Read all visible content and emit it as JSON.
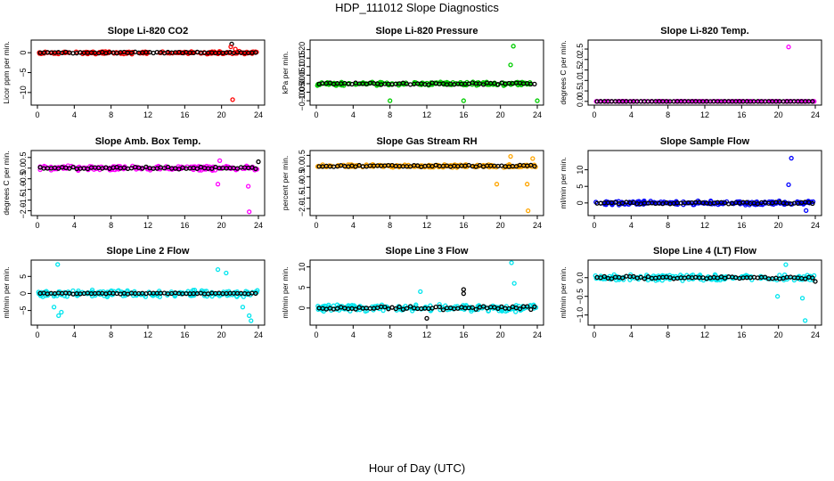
{
  "title": "HDP_111012  Slope Diagnostics",
  "xlabel": "Hour of Day (UTC)",
  "chart_data": [
    {
      "type": "scatter",
      "title": "Slope Li-820 CO2",
      "ylabel": "Licor ppm per min.",
      "color": "#ff0000",
      "xlim": [
        0,
        24
      ],
      "xticks": [
        0,
        4,
        8,
        12,
        16,
        20,
        24
      ],
      "ylim": [
        -12.5,
        2.5
      ],
      "yticks": [
        0,
        -5,
        -10
      ],
      "ytick_labels": [
        "0",
        "−5",
        "−10"
      ],
      "outliers": [
        {
          "x": 21.1,
          "y": 2.2,
          "c": "black"
        },
        {
          "x": 21.5,
          "y": 0.9
        },
        {
          "x": 21.2,
          "y": -11.8
        },
        {
          "x": 21.0,
          "y": 1.5
        }
      ],
      "base": 0,
      "spread": 0.4,
      "black_spread": 0.2
    },
    {
      "type": "scatter",
      "title": "Slope Li-820 Pressure",
      "ylabel": "kPa per min.",
      "color": "#00cc00",
      "xlim": [
        0,
        24
      ],
      "xticks": [
        0,
        4,
        8,
        12,
        16,
        20,
        24
      ],
      "ylim": [
        -0.11,
        0.24
      ],
      "yticks": [
        -0.1,
        -0.05,
        0,
        0.05,
        0.1,
        0.15,
        0.2
      ],
      "ytick_labels": [
        "−0.10",
        "−0.05",
        "0.00",
        "0.05",
        "0.10",
        "0.15",
        "0.20"
      ],
      "outliers": [
        {
          "x": 8,
          "y": -0.1
        },
        {
          "x": 16,
          "y": -0.1
        },
        {
          "x": 21.1,
          "y": 0.11
        },
        {
          "x": 21.4,
          "y": 0.22
        },
        {
          "x": 24,
          "y": -0.1
        }
      ],
      "base": 0,
      "spread": 0.012,
      "black_spread": 0.006
    },
    {
      "type": "scatter",
      "title": "Slope Li-820 Temp.",
      "ylabel": "degrees C per min.",
      "color": "#ff00ff",
      "xlim": [
        0,
        24
      ],
      "xticks": [
        0,
        4,
        8,
        12,
        16,
        20,
        24
      ],
      "ylim": [
        -0.05,
        2.8
      ],
      "yticks": [
        0,
        0.5,
        1,
        1.5,
        2,
        2.5
      ],
      "ytick_labels": [
        "0.0",
        "0.5",
        "1.0",
        "1.5",
        "2.0",
        "2.5"
      ],
      "outliers": [
        {
          "x": 21.1,
          "y": 2.6
        }
      ],
      "base": 0,
      "spread": 0.005,
      "black_spread": 0.002
    },
    {
      "type": "scatter",
      "title": "Slope Amb. Box Temp.",
      "ylabel": "degrees C per min.",
      "color": "#ff00ff",
      "xlim": [
        0,
        24
      ],
      "xticks": [
        0,
        4,
        8,
        12,
        16,
        20,
        24
      ],
      "ylim": [
        -2.1,
        0.7
      ],
      "yticks": [
        0.5,
        0,
        -0.5,
        -1,
        -1.5,
        -2
      ],
      "ytick_labels": [
        "0.5",
        "0.0",
        "−0.5",
        "−1.0",
        "−1.5",
        "−2.0"
      ],
      "outliers": [
        {
          "x": 19.6,
          "y": -0.75
        },
        {
          "x": 19.8,
          "y": 0.35
        },
        {
          "x": 22.9,
          "y": -0.85
        },
        {
          "x": 23.0,
          "y": -2.05
        },
        {
          "x": 24.0,
          "y": 0.3,
          "c": "black"
        }
      ],
      "base": 0,
      "spread": 0.12,
      "black_spread": 0.06
    },
    {
      "type": "scatter",
      "title": "Slope Gas Stream RH",
      "ylabel": "percent per min.",
      "color": "#ffa500",
      "xlim": [
        0,
        24
      ],
      "xticks": [
        0,
        4,
        8,
        12,
        16,
        20,
        24
      ],
      "ylim": [
        -2.2,
        0.6
      ],
      "yticks": [
        0.5,
        0,
        -0.5,
        -1,
        -1.5,
        -2
      ],
      "ytick_labels": [
        "0.5",
        "0.0",
        "−0.5",
        "−1.0",
        "−1.5",
        "−2.0"
      ],
      "outliers": [
        {
          "x": 19.6,
          "y": -0.85
        },
        {
          "x": 21.1,
          "y": 0.45
        },
        {
          "x": 22.9,
          "y": -0.85
        },
        {
          "x": 23.0,
          "y": -2.1
        },
        {
          "x": 23.5,
          "y": 0.35
        }
      ],
      "base": 0,
      "spread": 0.08,
      "black_spread": 0.05
    },
    {
      "type": "scatter",
      "title": "Slope Sample Flow",
      "ylabel": "ml/min per min.",
      "color": "#0000ff",
      "xlim": [
        0,
        24
      ],
      "xticks": [
        0,
        4,
        8,
        12,
        16,
        20,
        24
      ],
      "ylim": [
        -3,
        15
      ],
      "yticks": [
        0,
        5,
        10
      ],
      "ytick_labels": [
        "0",
        "5",
        "10"
      ],
      "outliers": [
        {
          "x": 21.1,
          "y": 5.5
        },
        {
          "x": 21.4,
          "y": 13.5
        },
        {
          "x": 23.0,
          "y": -2.3
        }
      ],
      "base": 0,
      "spread": 0.7,
      "black_spread": 0.3
    },
    {
      "type": "scatter",
      "title": "Slope Line 2 Flow",
      "ylabel": "ml/min per min.",
      "color": "#00e5ee",
      "xlim": [
        0,
        24
      ],
      "xticks": [
        0,
        4,
        8,
        12,
        16,
        20,
        24
      ],
      "ylim": [
        -8.5,
        9
      ],
      "yticks": [
        5,
        0,
        -5
      ],
      "ytick_labels": [
        "5",
        "0",
        "−5"
      ],
      "outliers": [
        {
          "x": 2.2,
          "y": 8.5
        },
        {
          "x": 2.3,
          "y": -6.5
        },
        {
          "x": 2.6,
          "y": -5.5
        },
        {
          "x": 1.8,
          "y": -4
        },
        {
          "x": 19.6,
          "y": 7
        },
        {
          "x": 20.5,
          "y": 6
        },
        {
          "x": 22.3,
          "y": -4
        },
        {
          "x": 23.0,
          "y": -6.5
        },
        {
          "x": 23.2,
          "y": -8
        }
      ],
      "base": 0,
      "spread": 1.2,
      "black_spread": 0.2
    },
    {
      "type": "scatter",
      "title": "Slope Line 3 Flow",
      "ylabel": "ml/min per min.",
      "color": "#00e5ee",
      "xlim": [
        0,
        24
      ],
      "xticks": [
        0,
        4,
        8,
        12,
        16,
        20,
        24
      ],
      "ylim": [
        -3.5,
        11
      ],
      "yticks": [
        0,
        5,
        10
      ],
      "ytick_labels": [
        "0",
        "5",
        "10"
      ],
      "outliers": [
        {
          "x": 21.2,
          "y": 11
        },
        {
          "x": 21.5,
          "y": 6
        },
        {
          "x": 16.0,
          "y": 4.5,
          "c": "black"
        },
        {
          "x": 16.0,
          "y": 3.5,
          "c": "black"
        },
        {
          "x": 12.0,
          "y": -2.5,
          "c": "black"
        },
        {
          "x": 11.3,
          "y": 4
        }
      ],
      "base": 0,
      "spread": 1.0,
      "black_spread": 0.5
    },
    {
      "type": "scatter",
      "title": "Slope Line 4 (LT) Flow",
      "ylabel": "ml/min per min.",
      "color": "#00e5ee",
      "xlim": [
        0,
        24
      ],
      "xticks": [
        0,
        4,
        8,
        12,
        16,
        20,
        24
      ],
      "ylim": [
        -1.2,
        0.4
      ],
      "yticks": [
        0,
        -0.5,
        -1
      ],
      "ytick_labels": [
        "0.0",
        "−0.5",
        "−1.0"
      ],
      "outliers": [
        {
          "x": 20.8,
          "y": 0.35
        },
        {
          "x": 22.9,
          "y": -1.15
        },
        {
          "x": 22.6,
          "y": -0.55
        },
        {
          "x": 19.9,
          "y": -0.5
        },
        {
          "x": 24,
          "y": -0.1,
          "c": "black"
        }
      ],
      "base": 0,
      "spread": 0.09,
      "black_spread": 0.04
    }
  ]
}
